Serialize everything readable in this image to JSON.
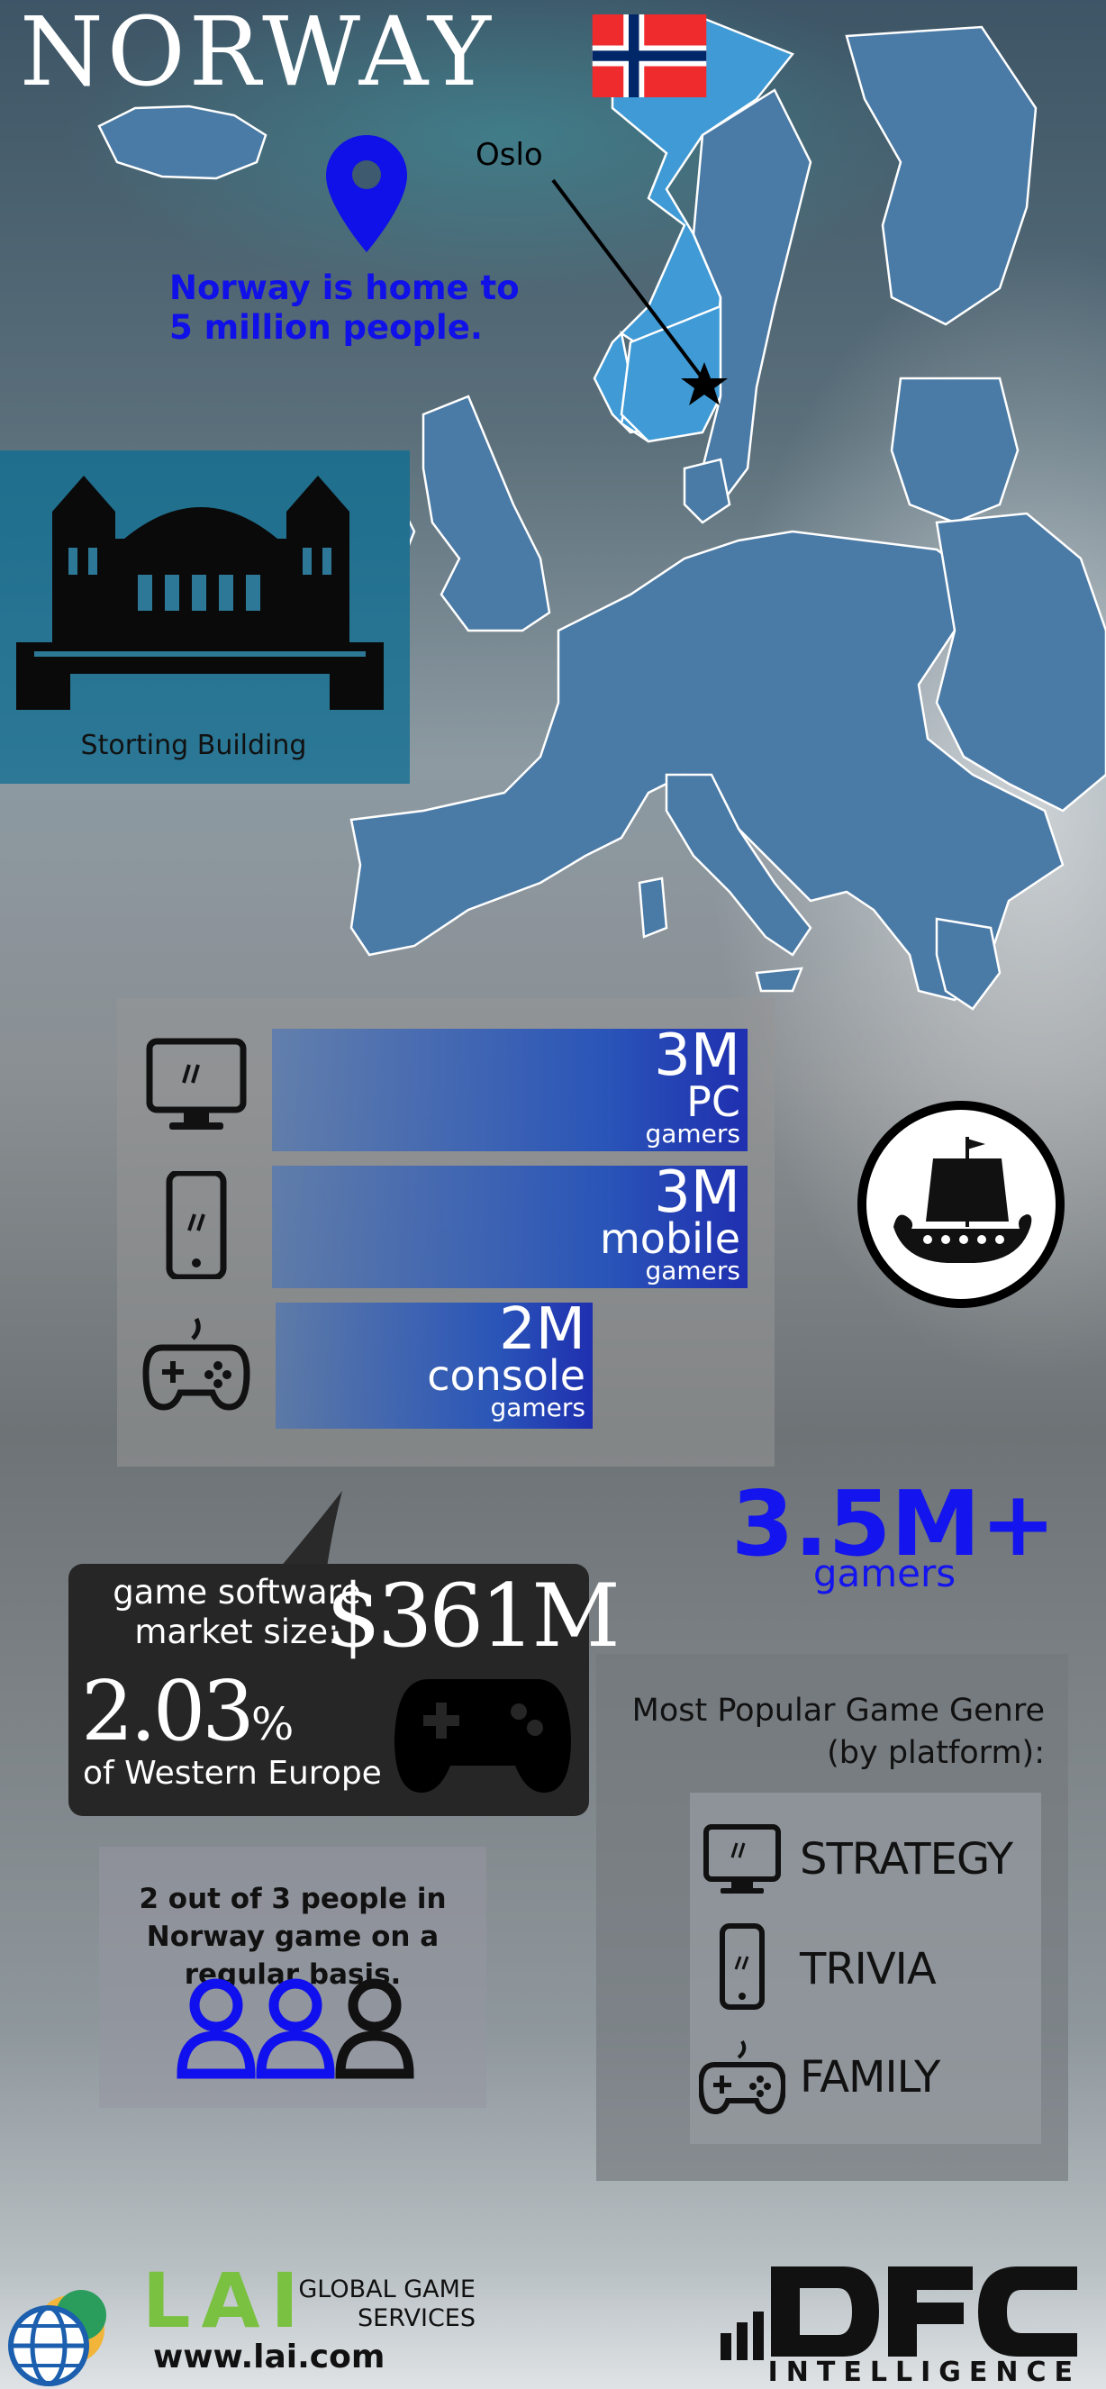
{
  "header": {
    "title": "NORWAY"
  },
  "map": {
    "pin_caption": "Norway is home to 5 million people.",
    "capital_label": "Oslo"
  },
  "landmark": {
    "label": "Storting Building"
  },
  "gamers": {
    "rows": [
      {
        "icon": "monitor-icon",
        "value": "3M",
        "platform": "PC",
        "unit": "gamers",
        "fill_fraction": 1.0
      },
      {
        "icon": "smartphone-icon",
        "value": "3M",
        "platform": "mobile",
        "unit": "gamers",
        "fill_fraction": 1.0
      },
      {
        "icon": "gamepad-icon",
        "value": "2M",
        "platform": "console",
        "unit": "gamers",
        "fill_fraction": 0.67
      }
    ],
    "total_value": "3.5M+",
    "total_label": "gamers"
  },
  "market": {
    "label": "game software market size:",
    "value": "$361M",
    "percent": "2.03",
    "percent_sign": "%",
    "percent_label": "of Western Europe"
  },
  "people": {
    "text": "2 out of 3 people in Norway game on a regular basis.",
    "ratio_gamers": 2,
    "ratio_total": 3
  },
  "genres": {
    "title": "Most Popular Game Genre (by platform):",
    "items": [
      {
        "icon": "monitor-icon",
        "label": "STRATEGY"
      },
      {
        "icon": "smartphone-icon",
        "label": "TRIVIA"
      },
      {
        "icon": "gamepad-icon",
        "label": "FAMILY"
      }
    ]
  },
  "footer": {
    "lai_logo": "LAI",
    "lai_tagline": "GLOBAL GAME SERVICES",
    "lai_url": "www.lai.com",
    "dfc_sub": "INTELLIGENCE"
  },
  "colors": {
    "accent_blue": "#1414ee",
    "map_blue": "#4a7aa6",
    "norway_blue": "#3f9ad6",
    "lai_green": "#7ac142"
  }
}
